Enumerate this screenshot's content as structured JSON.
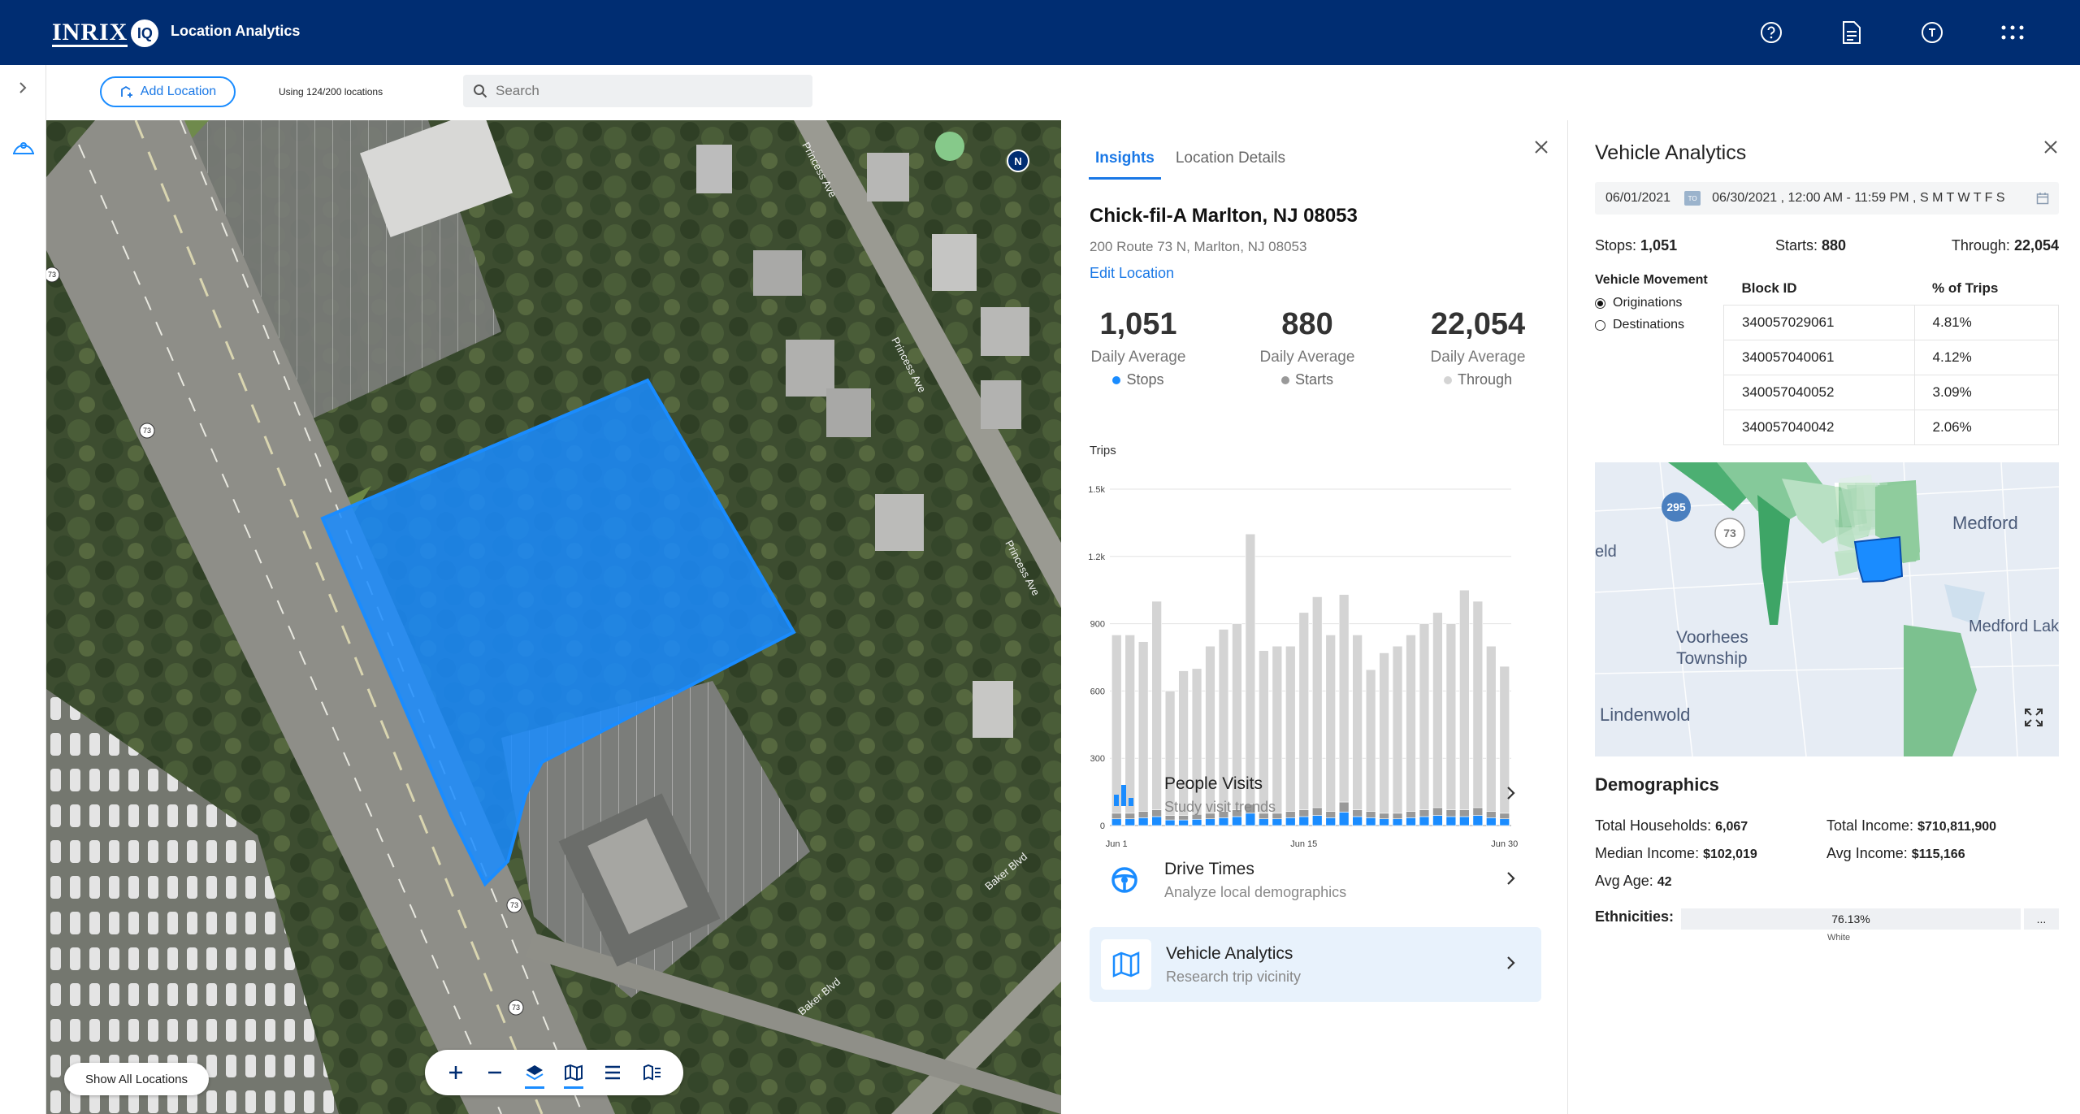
{
  "header": {
    "logo_text": "INRIX",
    "logo_badge": "IQ",
    "app_title": "Location Analytics",
    "icons": [
      "help-icon",
      "document-icon",
      "tutorial-icon",
      "apps-grid-icon"
    ]
  },
  "toolbar": {
    "add_location_label": "Add Location",
    "usage_text": "Using 124/200 locations",
    "search_placeholder": "Search"
  },
  "map": {
    "show_all_label": "Show All Locations",
    "north_label": "N",
    "route_labels": [
      "73",
      "73",
      "73",
      "73"
    ],
    "street_labels": [
      "Princess Ave",
      "Princess Ave",
      "Princess Ave",
      "Baker Blvd",
      "Baker Blvd"
    ],
    "tools": [
      "zoom-in-icon",
      "zoom-out-icon",
      "layers-icon",
      "map-view-icon",
      "list-view-icon",
      "map-legend-icon"
    ]
  },
  "insights": {
    "tabs": [
      "Insights",
      "Location Details"
    ],
    "location_name": "Chick-fil-A Marlton, NJ 08053",
    "address": "200 Route 73 N, Marlton, NJ 08053",
    "edit_label": "Edit Location",
    "stats": [
      {
        "value": "1,051",
        "label": "Daily Average",
        "legend": "Stops",
        "color": "#1a8cff"
      },
      {
        "value": "880",
        "label": "Daily Average",
        "legend": "Starts",
        "color": "#999999"
      },
      {
        "value": "22,054",
        "label": "Daily Average",
        "legend": "Through",
        "color": "#d4d4d4"
      }
    ],
    "trips_label": "Trips",
    "cards": [
      {
        "title": "People Visits",
        "subtitle": "Study visit trends",
        "icon": "bar-chart-icon"
      },
      {
        "title": "Drive Times",
        "subtitle": "Analyze local demographics",
        "icon": "steering-wheel-icon"
      },
      {
        "title": "Vehicle Analytics",
        "subtitle": "Research trip vicinity",
        "icon": "map-icon"
      }
    ]
  },
  "chart_data": {
    "type": "bar",
    "title": "Trips",
    "categories": [
      "Jun 1",
      "Jun 2",
      "Jun 3",
      "Jun 4",
      "Jun 5",
      "Jun 6",
      "Jun 7",
      "Jun 8",
      "Jun 9",
      "Jun 10",
      "Jun 11",
      "Jun 12",
      "Jun 13",
      "Jun 14",
      "Jun 15",
      "Jun 16",
      "Jun 17",
      "Jun 18",
      "Jun 19",
      "Jun 20",
      "Jun 21",
      "Jun 22",
      "Jun 23",
      "Jun 24",
      "Jun 25",
      "Jun 26",
      "Jun 27",
      "Jun 28",
      "Jun 29",
      "Jun 30"
    ],
    "x_tick_labels": [
      "Jun 1",
      "Jun 15",
      "Jun 30"
    ],
    "y_ticks": [
      "0",
      "300",
      "600",
      "900",
      "1.2k",
      "1.5k"
    ],
    "ylim": [
      0,
      1500
    ],
    "stacked": true,
    "series": [
      {
        "name": "Stops",
        "color": "#1a8cff",
        "values": [
          30,
          30,
          35,
          40,
          25,
          25,
          28,
          30,
          35,
          40,
          55,
          30,
          30,
          35,
          40,
          45,
          35,
          60,
          40,
          35,
          30,
          30,
          35,
          40,
          45,
          40,
          40,
          45,
          35,
          30
        ]
      },
      {
        "name": "Starts",
        "color": "#999999",
        "values": [
          25,
          25,
          28,
          30,
          20,
          20,
          22,
          25,
          28,
          30,
          40,
          25,
          25,
          28,
          30,
          35,
          28,
          45,
          30,
          28,
          25,
          25,
          28,
          30,
          35,
          30,
          30,
          35,
          28,
          25
        ]
      },
      {
        "name": "Through",
        "color": "#d4d4d4",
        "values": [
          795,
          795,
          757,
          930,
          555,
          645,
          650,
          745,
          812,
          830,
          1205,
          725,
          745,
          737,
          880,
          940,
          787,
          925,
          780,
          632,
          715,
          745,
          787,
          830,
          870,
          830,
          980,
          920,
          737,
          655
        ]
      }
    ]
  },
  "vehicle": {
    "title": "Vehicle Analytics",
    "date_start": "06/01/2021",
    "date_to": "TO",
    "date_end": "06/30/2021 , 12:00 AM - 11:59 PM , S M T W T F S",
    "stops_label": "Stops:",
    "stops_value": "1,051",
    "starts_label": "Starts:",
    "starts_value": "880",
    "through_label": "Through:",
    "through_value": "22,054",
    "movement_label": "Vehicle Movement",
    "radio_originations": "Originations",
    "radio_destinations": "Destinations",
    "table_headers": [
      "Block ID",
      "% of Trips"
    ],
    "table_rows": [
      [
        "340057029061",
        "4.81%"
      ],
      [
        "340057040061",
        "4.12%"
      ],
      [
        "340057040052",
        "3.09%"
      ],
      [
        "340057040042",
        "2.06%"
      ]
    ],
    "minimap_labels": [
      "295",
      "73",
      "Medford",
      "eld",
      "Voorhees",
      "Township",
      "Medford Lake",
      "Lindenwold"
    ]
  },
  "demographics": {
    "title": "Demographics",
    "households_label": "Total Households:",
    "households_value": "6,067",
    "income_total_label": "Total Income:",
    "income_total_value": "$710,811,900",
    "median_label": "Median Income:",
    "median_value": "$102,019",
    "avg_income_label": "Avg Income:",
    "avg_income_value": "$115,166",
    "avg_age_label": "Avg Age:",
    "avg_age_value": "42",
    "ethnicities_label": "Ethnicities:",
    "eth_pct": "76.13%",
    "eth_name": "White",
    "eth_more": "..."
  },
  "colors": {
    "header_bg": "#002d72",
    "accent": "#1a8cff",
    "polygon": "#1a8cff"
  }
}
